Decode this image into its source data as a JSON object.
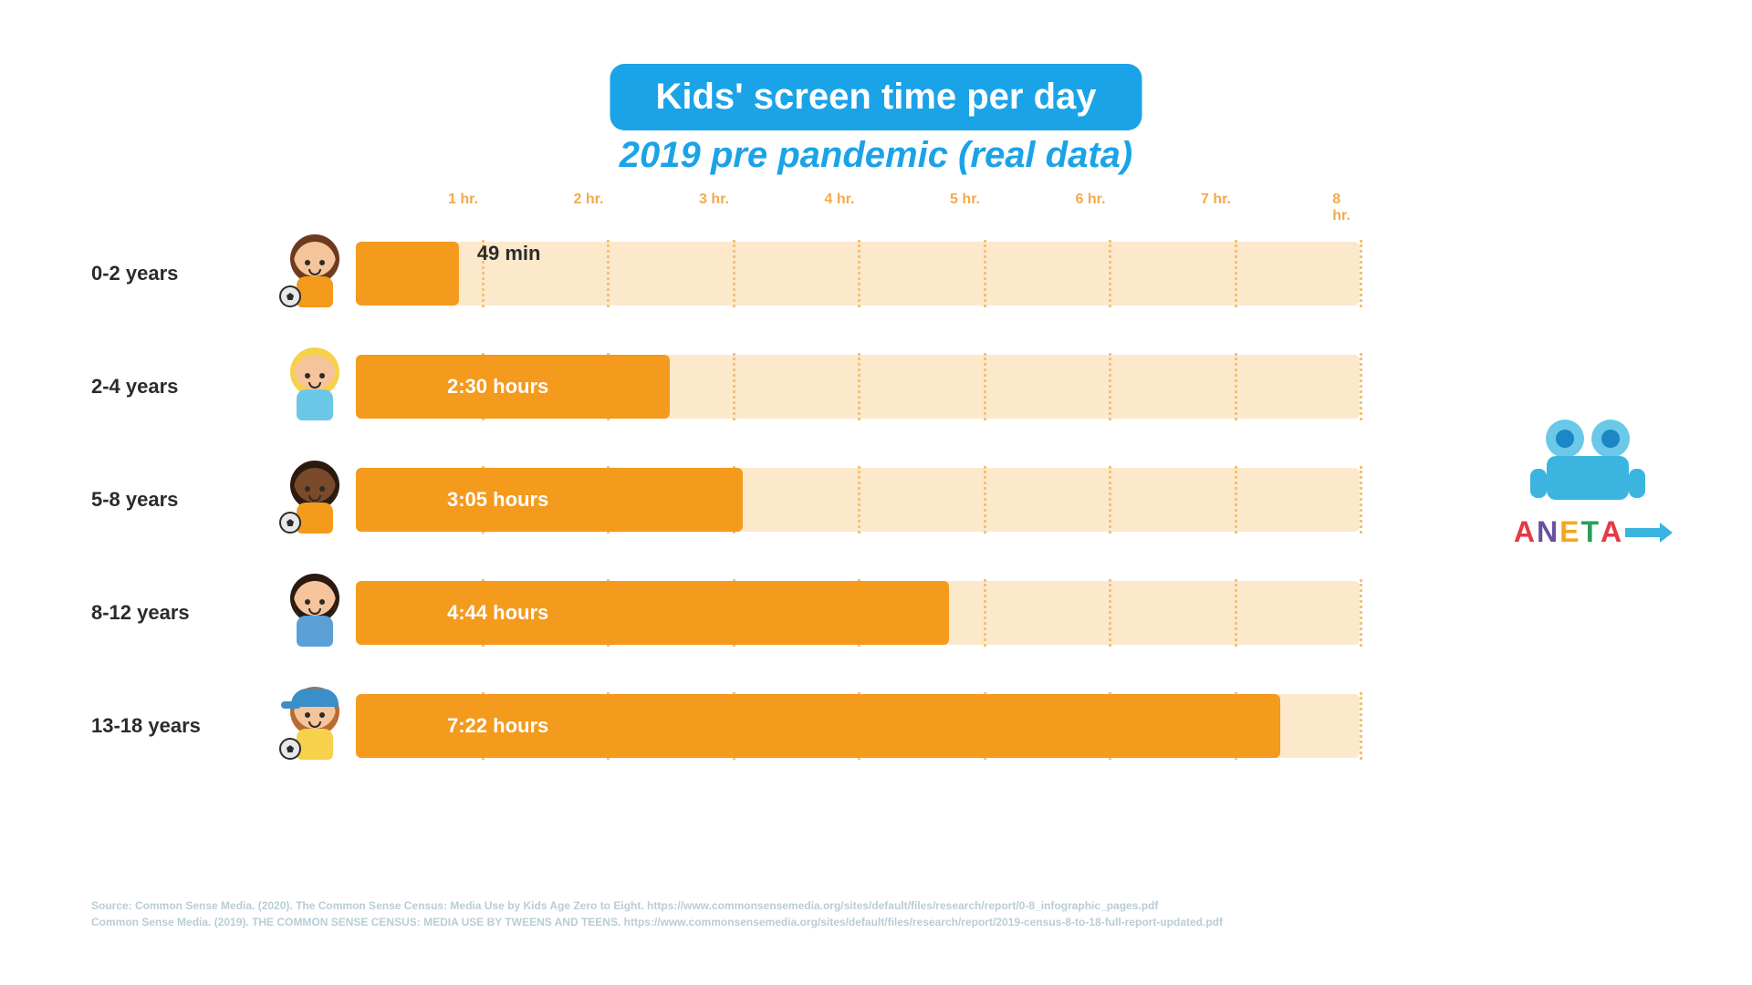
{
  "title": "Kids' screen time per day",
  "subtitle": "2019 pre pandemic (real data)",
  "chart": {
    "type": "bar",
    "orientation": "horizontal",
    "x_axis": {
      "min_hours": 0,
      "max_hours": 8,
      "ticks": [
        1,
        2,
        3,
        4,
        5,
        6,
        7,
        8
      ],
      "tick_labels": [
        "1 hr.",
        "2 hr.",
        "3 hr.",
        "4 hr.",
        "5 hr.",
        "6 hr.",
        "7 hr.",
        "8 hr."
      ],
      "label_color": "#f3a94d",
      "grid_color": "#f3c17a"
    },
    "bar_color": "#f49a1d",
    "track_color": "#fce9cc",
    "value_label_color_inside": "#ffffff",
    "value_label_color_outside": "#2b2b2b",
    "value_label_fontsize": 22,
    "rows": [
      {
        "age_label": "0-2 years",
        "value_hours": 0.82,
        "value_label": "49 min",
        "label_outside": true,
        "icon": {
          "skin": "#f6c49a",
          "hair": "#6b3a1f",
          "outfit": "#f49a1d",
          "has_ball": true
        }
      },
      {
        "age_label": "2-4 years",
        "value_hours": 2.5,
        "value_label": "2:30 hours",
        "label_outside": false,
        "icon": {
          "skin": "#f6c49a",
          "hair": "#f7d14b",
          "outfit": "#6bc8e8",
          "has_ball": false
        }
      },
      {
        "age_label": "5-8 years",
        "value_hours": 3.08,
        "value_label": "3:05 hours",
        "label_outside": false,
        "icon": {
          "skin": "#7a4a2a",
          "hair": "#2b1a10",
          "outfit": "#f49a1d",
          "has_ball": true
        }
      },
      {
        "age_label": "8-12 years",
        "value_hours": 4.73,
        "value_label": "4:44 hours",
        "label_outside": false,
        "icon": {
          "skin": "#f6c49a",
          "hair": "#2b1a10",
          "outfit": "#5a9fd6",
          "has_ball": false
        }
      },
      {
        "age_label": "13-18 years",
        "value_hours": 7.37,
        "value_label": "7:22 hours",
        "label_outside": false,
        "icon": {
          "skin": "#f6c49a",
          "hair": "#b86a2f",
          "outfit": "#f7d14b",
          "cap": "#3b8fc9",
          "has_ball": true
        }
      }
    ]
  },
  "brand": {
    "name": "ANETA",
    "letter_colors": [
      "#e63946",
      "#6b4fa0",
      "#f4a71d",
      "#2a9d5c",
      "#e63946"
    ],
    "robot_color": "#3bb5e0",
    "arrow_color": "#3bb5e0"
  },
  "sources": [
    "Source: Common Sense Media. (2020). The Common Sense Census: Media Use by Kids Age Zero to Eight. https://www.commonsensemedia.org/sites/default/files/research/report/0-8_infographic_pages.pdf",
    "Common Sense Media. (2019). THE COMMON SENSE CENSUS: MEDIA USE BY TWEENS AND TEENS. https://www.commonsensemedia.org/sites/default/files/research/report/2019-census-8-to-18-full-report-updated.pdf"
  ],
  "colors": {
    "title_bg": "#1ba3e8",
    "title_text": "#ffffff",
    "subtitle_text": "#1ba3e8",
    "page_bg": "#ffffff",
    "age_label_text": "#2b2b2b",
    "source_text": "#b8cdd6"
  }
}
